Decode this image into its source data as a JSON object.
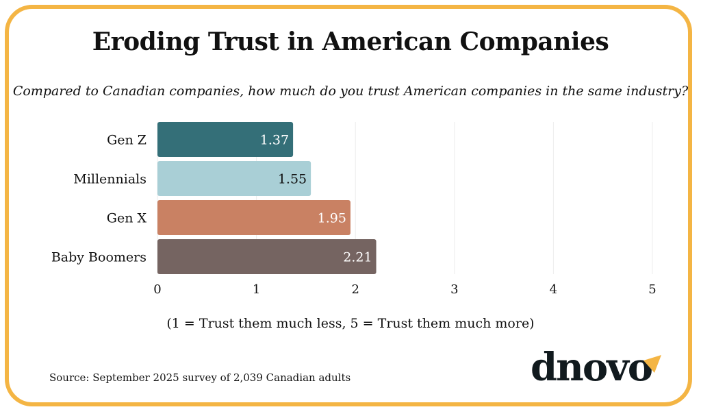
{
  "title": "Eroding Trust in American Companies",
  "subtitle": "Compared to Canadian companies, how much do you trust American companies in the same industry?",
  "note": "(1 = Trust them much less, 5 = Trust them much more)",
  "source": "Source:  September 2025 survey of 2,039 Canadian adults",
  "logo": {
    "text": "dnovo",
    "accent_color": "#f4b544"
  },
  "frame_color": "#f4b544",
  "chart_data": {
    "type": "bar",
    "orientation": "horizontal",
    "title": "Eroding Trust in American Companies",
    "subtitle": "Compared to Canadian companies, how much do you trust American companies in the same industry?",
    "xlabel": "(1 = Trust them much less, 5 = Trust them much more)",
    "ylabel": "",
    "categories": [
      "Gen Z",
      "Millennials",
      "Gen X",
      "Baby Boomers"
    ],
    "values": [
      1.37,
      1.55,
      1.95,
      2.21
    ],
    "value_labels": [
      "1.37",
      "1.55",
      "1.95",
      "2.21"
    ],
    "colors": [
      "#346f78",
      "#a9cfd6",
      "#c98163",
      "#756461"
    ],
    "label_colors": [
      "#ffffff",
      "#111111",
      "#ffffff",
      "#ffffff"
    ],
    "xlim": [
      0,
      5
    ],
    "xticks": [
      0,
      1,
      2,
      3,
      4,
      5
    ],
    "xtick_labels": [
      "0",
      "1",
      "2",
      "3",
      "4",
      "5"
    ],
    "grid": true
  }
}
